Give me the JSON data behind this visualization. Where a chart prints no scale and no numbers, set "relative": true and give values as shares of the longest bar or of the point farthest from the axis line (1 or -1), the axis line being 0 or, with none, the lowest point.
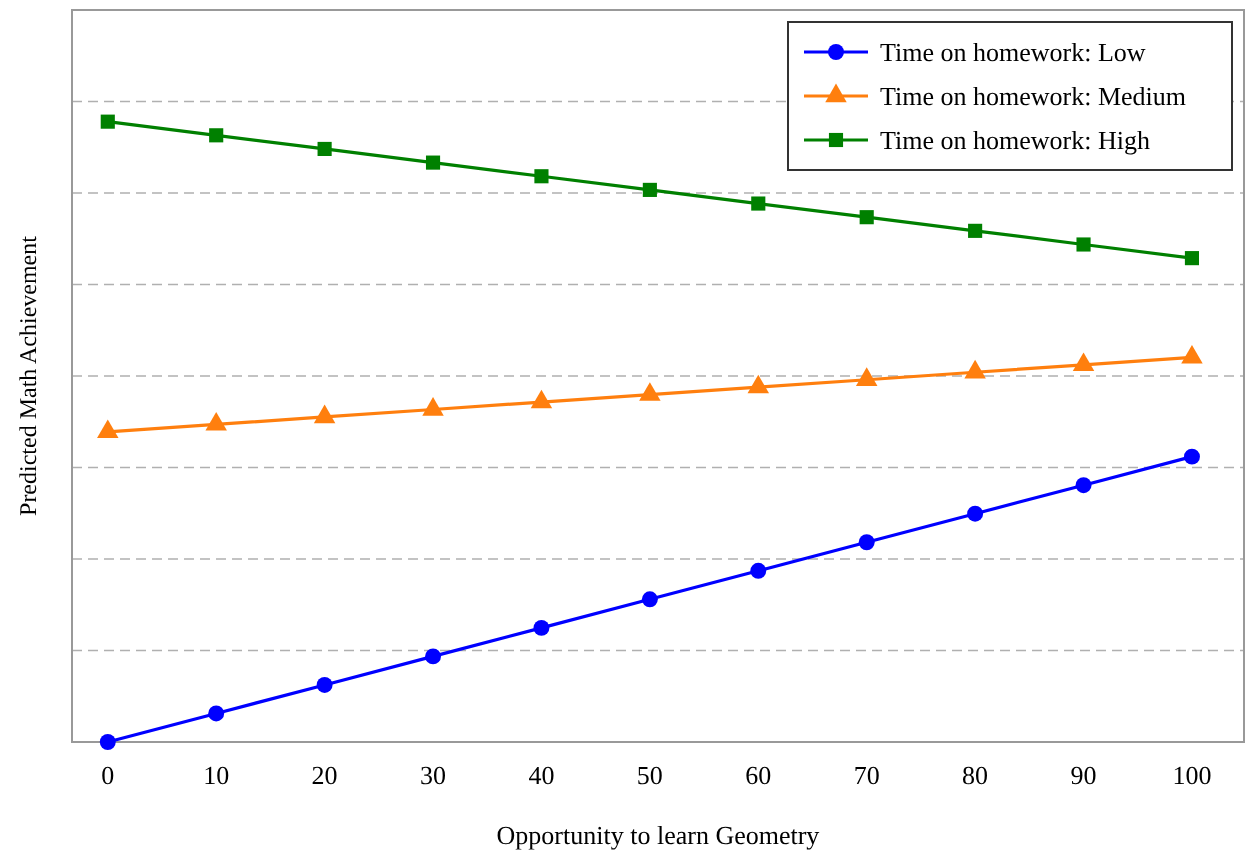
{
  "chart_data": {
    "type": "line",
    "xlabel": "Opportunity to learn Geometry",
    "ylabel": "Predicted Math Achievement",
    "relative": true,
    "x": [
      0,
      10,
      20,
      30,
      40,
      50,
      60,
      70,
      80,
      90,
      100
    ],
    "xlim": [
      -3.3,
      104.8
    ],
    "xticks": [
      0,
      10,
      20,
      30,
      40,
      50,
      60,
      70,
      80,
      90,
      100
    ],
    "grid": "y",
    "legend": "top right",
    "line_style": "solid",
    "series": [
      {
        "name": "Time on homework: Low",
        "color": "#0000ff",
        "marker": "circle",
        "values": [
          0,
          0.046,
          0.092,
          0.138,
          0.184,
          0.23,
          0.276,
          0.322,
          0.368,
          0.414,
          0.46
        ]
      },
      {
        "name": "Time on homework: Medium",
        "color": "#ff7f0e",
        "marker": "triangle",
        "values": [
          0.5,
          0.512,
          0.524,
          0.536,
          0.548,
          0.56,
          0.572,
          0.584,
          0.596,
          0.608,
          0.62
        ]
      },
      {
        "name": "Time on homework: High",
        "color": "#008000",
        "marker": "square",
        "values": [
          1,
          0.978,
          0.956,
          0.934,
          0.912,
          0.89,
          0.868,
          0.846,
          0.824,
          0.802,
          0.78
        ]
      }
    ]
  }
}
